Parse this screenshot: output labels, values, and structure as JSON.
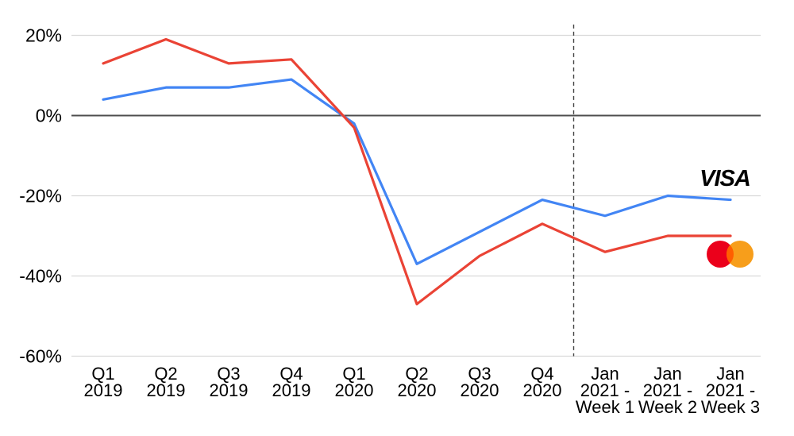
{
  "chart_data": {
    "type": "line",
    "title": "",
    "xlabel": "",
    "ylabel": "",
    "categories": [
      "Q1\n2019",
      "Q2\n2019",
      "Q3\n2019",
      "Q4\n2019",
      "Q1\n2020",
      "Q2\n2020",
      "Q3\n2020",
      "Q4\n2020",
      "Jan\n2021 -\nWeek 1",
      "Jan\n2021 -\nWeek 2",
      "Jan\n2021 -\nWeek 3"
    ],
    "series": [
      {
        "name": "Visa",
        "color": "#4285F4",
        "values": [
          4,
          7,
          7,
          9,
          -2,
          -37,
          -29,
          -21,
          -25,
          -20,
          -21
        ]
      },
      {
        "name": "Mastercard",
        "color": "#EA4335",
        "values": [
          13,
          19,
          13,
          14,
          -3,
          -47,
          -35,
          -27,
          -34,
          -30,
          -30
        ]
      }
    ],
    "yticks": [
      20,
      0,
      -20,
      -40,
      -60
    ],
    "ytick_labels": [
      "20%",
      "0%",
      "-20%",
      "-40%",
      "-60%"
    ],
    "ylim": [
      -60,
      22.7
    ],
    "grid": true,
    "legend": "none",
    "separator": {
      "after_category_index": 7,
      "style": "dashed"
    }
  },
  "logos": {
    "visa_label": "VISA",
    "visa_color": "#1A1F71",
    "mastercard_red": "#EB001B",
    "mastercard_orange": "#F79E1B",
    "mastercard_overlap": "#FF5F00"
  },
  "colors": {
    "grid": "#D9D9D9",
    "zero_line": "#4D4D4D",
    "separator": "#444444",
    "axis_text": "#000000",
    "background": "#FFFFFF"
  }
}
